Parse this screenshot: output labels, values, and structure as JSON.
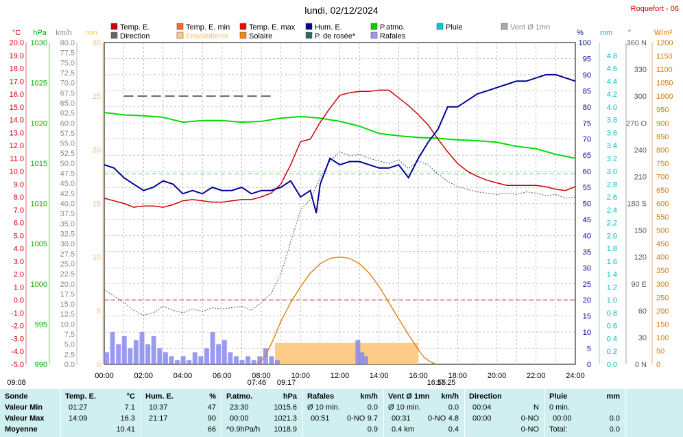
{
  "title": "lundi, 02/12/2024",
  "station": "Roquefort - 06",
  "colors": {
    "temp": "#cc0000",
    "temp_min": "#ff6633",
    "temp_max": "#ff0000",
    "hum": "#000099",
    "patm": "#00dd00",
    "pluie": "#00cccc",
    "vent": "#aaaaaa",
    "direction": "#666666",
    "ensoleil": "#ffcc88",
    "solaire": "#dd7700",
    "rosee": "#336666",
    "rafales": "#8888ee"
  },
  "legend": [
    {
      "label": "Temp. E.",
      "color": "#cc0000"
    },
    {
      "label": "Temp. E. min",
      "color": "#ff6633"
    },
    {
      "label": "Temp. E. max",
      "color": "#ff0000"
    },
    {
      "label": "Hum. E.",
      "color": "#000099"
    },
    {
      "label": "P.atmo.",
      "color": "#00cc00"
    },
    {
      "label": "Pluie",
      "color": "#00cccc"
    },
    {
      "label": "Vent Ø 1mn",
      "color": "#aaaaaa"
    },
    {
      "label": "Direction",
      "color": "#666666"
    },
    {
      "label": "Ensoleilleme",
      "color": "#ffcc88"
    },
    {
      "label": "Solaire",
      "color": "#ff8800"
    },
    {
      "label": "P. de rosée*",
      "color": "#336666"
    },
    {
      "label": "Rafales",
      "color": "#9999ee"
    }
  ],
  "axes": {
    "temp": {
      "unit": "°C",
      "min": -5,
      "max": 20,
      "step": 1
    },
    "hpa": {
      "unit": "hPa",
      "min": 990,
      "max": 1030,
      "step": 5
    },
    "kmh": {
      "unit": "km/h",
      "min": 0,
      "max": 80,
      "step": 2.5
    },
    "minutes": {
      "unit": "min",
      "ticks": [
        0,
        5,
        10,
        15,
        20,
        25,
        30
      ]
    },
    "percent": {
      "unit": "%",
      "min": 0,
      "max": 100,
      "step": 5
    },
    "mm": {
      "unit": "mm",
      "min": 0,
      "max": 5,
      "step": 0.2
    },
    "degrees": {
      "unit": "°",
      "ticks": [
        "0 N",
        "30",
        "60",
        "90 E",
        "120",
        "150",
        "180 S",
        "210",
        "240",
        "270 O",
        "300",
        "330",
        "360 N"
      ]
    },
    "wm2": {
      "unit": "W/m²",
      "min": 0,
      "max": 1200,
      "step": 50
    },
    "time": {
      "ticks": [
        "00:00",
        "02:00",
        "04:00",
        "06:00",
        "08:00",
        "10:00",
        "12:00",
        "14:00",
        "16:00",
        "18:00",
        "20:00",
        "22:00",
        "24:00"
      ]
    }
  },
  "sun_markers": [
    {
      "label": "09:08",
      "hour": 0
    },
    {
      "label": "07:46",
      "hour": 7.77
    },
    {
      "label": "09:17",
      "hour": 9.28
    },
    {
      "label": "16:55",
      "hour": 16.92
    },
    {
      "label": "17:25",
      "hour": 17.42
    }
  ],
  "chart_data": {
    "type": "line",
    "x_unit": "hour",
    "xlim": [
      0,
      24
    ],
    "series": [
      {
        "name": "Temp. E.",
        "unit": "°C",
        "x": [
          0,
          0.5,
          1,
          1.5,
          2,
          2.5,
          3,
          3.5,
          4,
          4.5,
          5,
          5.5,
          6,
          6.5,
          7,
          7.5,
          8,
          8.5,
          9,
          9.5,
          10,
          10.5,
          11,
          11.5,
          12,
          12.5,
          13,
          13.5,
          14,
          14.5,
          15,
          15.5,
          16,
          16.5,
          17,
          17.5,
          18,
          18.5,
          19,
          19.5,
          20,
          20.5,
          21,
          21.5,
          22,
          22.5,
          23,
          23.5,
          24
        ],
        "values": [
          7.9,
          7.7,
          7.5,
          7.2,
          7.3,
          7.3,
          7.2,
          7.4,
          7.7,
          7.8,
          7.7,
          7.6,
          7.6,
          7.7,
          7.8,
          7.8,
          8.0,
          8.3,
          9.0,
          10.5,
          12.3,
          12.5,
          13.8,
          14.9,
          15.9,
          16.1,
          16.2,
          16.2,
          16.3,
          16.3,
          15.7,
          15.1,
          14.4,
          13.6,
          12.5,
          11.5,
          10.6,
          10.0,
          9.6,
          9.3,
          9.1,
          8.9,
          8.9,
          8.9,
          8.9,
          8.8,
          8.6,
          8.5,
          8.8
        ]
      },
      {
        "name": "P.atmo.",
        "unit": "hPa",
        "x": [
          0,
          1,
          2,
          3,
          4,
          5,
          6,
          7,
          8,
          9,
          10,
          11,
          12,
          13,
          14,
          15,
          16,
          17,
          18,
          19,
          20,
          21,
          22,
          23,
          24
        ],
        "values": [
          1021.3,
          1021.0,
          1020.9,
          1020.7,
          1020.1,
          1020.3,
          1020.3,
          1020.1,
          1020.2,
          1020.6,
          1020.8,
          1020.6,
          1020.2,
          1019.6,
          1018.7,
          1018.4,
          1018.2,
          1018.1,
          1017.9,
          1017.8,
          1017.6,
          1017.1,
          1016.8,
          1016.1,
          1015.6
        ]
      },
      {
        "name": "Hum. E.",
        "unit": "%",
        "x": [
          0,
          0.5,
          1,
          1.5,
          2,
          2.5,
          3,
          3.5,
          4,
          4.5,
          5,
          5.5,
          6,
          6.5,
          7,
          7.5,
          8,
          8.5,
          9,
          9.5,
          10,
          10.5,
          10.8,
          11,
          11.5,
          12,
          12.5,
          13,
          13.5,
          14,
          14.5,
          15,
          15.5,
          16,
          16.5,
          17,
          17.5,
          18,
          18.5,
          19,
          19.5,
          20,
          20.5,
          21,
          21.5,
          22,
          22.5,
          23,
          23.5,
          24
        ],
        "values": [
          62,
          61,
          58,
          56,
          54,
          55,
          57,
          56,
          53,
          54,
          53,
          55,
          54,
          54,
          55,
          53,
          54,
          54,
          55,
          57,
          52,
          54,
          47,
          56,
          64,
          62,
          63,
          63,
          62,
          61,
          61,
          62,
          58,
          64,
          69,
          73,
          80,
          80,
          82,
          84,
          85,
          86,
          87,
          88,
          88,
          89,
          90,
          90,
          89,
          88
        ]
      },
      {
        "name": "P. de rosée*",
        "unit": "°C",
        "x": [
          0,
          0.5,
          1,
          1.5,
          2,
          2.5,
          3,
          3.5,
          4,
          4.5,
          5,
          5.5,
          6,
          6.5,
          7,
          7.5,
          8,
          8.5,
          9,
          9.5,
          10,
          10.5,
          11,
          11.5,
          12,
          12.5,
          13,
          13.5,
          14,
          14.5,
          15,
          15.5,
          16,
          16.5,
          17,
          17.5,
          18,
          18.5,
          19,
          19.5,
          20,
          20.5,
          21,
          21.5,
          22,
          22.5,
          23,
          23.5,
          24
        ],
        "values": [
          0.8,
          0.3,
          -0.2,
          -0.8,
          -1.2,
          -1.0,
          -0.5,
          -0.8,
          -1.0,
          -0.7,
          -0.9,
          -0.6,
          -0.7,
          -0.6,
          -0.5,
          -0.8,
          -0.2,
          0.5,
          2.0,
          4.5,
          7.0,
          7.8,
          9.5,
          10.8,
          11.5,
          11.2,
          11.3,
          11.0,
          10.8,
          10.6,
          10.9,
          10.2,
          10.8,
          10.5,
          9.8,
          9.2,
          8.8,
          8.6,
          8.4,
          8.3,
          8.2,
          8.3,
          8.2,
          8.4,
          8.3,
          8.1,
          8.2,
          7.9,
          8.0
        ]
      },
      {
        "name": "Solaire",
        "unit": "W/m²",
        "x": [
          7.8,
          8.2,
          8.6,
          9.0,
          9.5,
          10,
          10.5,
          11,
          11.5,
          12,
          12.5,
          13,
          13.5,
          14,
          14.5,
          15,
          15.5,
          16,
          16.3,
          16.6,
          16.9
        ],
        "values": [
          0,
          30,
          90,
          160,
          230,
          290,
          340,
          375,
          395,
          400,
          395,
          375,
          340,
          290,
          230,
          170,
          110,
          55,
          25,
          10,
          0
        ]
      },
      {
        "name": "Ensoleilleme",
        "unit": "min",
        "x": [
          8.7,
          16.0
        ],
        "values": [
          2,
          2
        ]
      },
      {
        "name": "Rafales",
        "unit": "km/h",
        "x": [
          0,
          0.3,
          0.6,
          0.9,
          1.2,
          1.5,
          1.8,
          2.1,
          2.4,
          2.7,
          3.0,
          3.3,
          3.6,
          3.9,
          4.2,
          4.5,
          4.8,
          5.1,
          5.4,
          5.7,
          6.0,
          6.3,
          6.6,
          6.9,
          7.2,
          7.5,
          7.8,
          8.1,
          8.4,
          8.7,
          9.0,
          12.8,
          13.0,
          13.2
        ],
        "values": [
          3,
          8,
          5,
          7,
          4,
          6,
          8,
          5,
          7,
          4,
          3,
          2,
          1,
          2,
          1,
          3,
          2,
          4,
          8,
          5,
          6,
          3,
          2,
          1,
          2,
          1,
          2,
          4,
          2,
          1,
          0,
          6,
          3,
          2
        ]
      },
      {
        "name": "Direction",
        "unit": "°",
        "x": [
          1,
          8.6
        ],
        "values": [
          300,
          300
        ]
      }
    ],
    "reference_lines": [
      {
        "axis": "temp",
        "value": 0,
        "color": "#cc0000"
      },
      {
        "axis": "temp",
        "value": 9.8,
        "color": "#00bb00"
      }
    ]
  },
  "summary": {
    "sonde": {
      "header": "Sonde",
      "rows": [
        "Valeur Min",
        "Valeur Max",
        "Moyenne"
      ]
    },
    "temp": {
      "header": "Temp. E.",
      "unit": "°C",
      "min_time": "01:27",
      "min": "7.1",
      "max_time": "14:09",
      "max": "16.3",
      "avg": "10.41"
    },
    "hum": {
      "header": "Hum. E.",
      "unit": "%",
      "min_time": "10:37",
      "min": "47",
      "max_time": "21:17",
      "max": "90",
      "avg": "66"
    },
    "patm": {
      "header": "P.atmo.",
      "unit": "hPa",
      "min_time": "23:30",
      "min": "1015.6",
      "max_time": "00:00",
      "max": "1021.3",
      "avg_label": "^0.9hPa/h",
      "avg": "1018.9"
    },
    "rafales": {
      "header": "Rafales",
      "unit": "km/h",
      "l1": "Ø 10 min.",
      "v1": "0.0",
      "l2_time": "00:51",
      "l2_dir": "0-NO",
      "v2": "9.7",
      "avg": "0.9"
    },
    "vent": {
      "header": "Vent Ø 1mn",
      "unit": "km/h",
      "l1": "Ø 10 min.",
      "v1": "0.0",
      "l2_time": "00:31",
      "l2_dir": "0-NO",
      "v2": "4.8",
      "l3": "0.4 km",
      "avg": "0.4"
    },
    "direction": {
      "header": "Direction",
      "t1": "00:04",
      "v1": "N",
      "t2": "00:00",
      "v2": "0-NO",
      "v3": "0-NO"
    },
    "pluie": {
      "header": "Pluie",
      "unit": "mm",
      "l1": "0 min.",
      "l2_time": "00:00",
      "v2": "0.0",
      "l3": "Total:",
      "v3": "0.0"
    }
  }
}
